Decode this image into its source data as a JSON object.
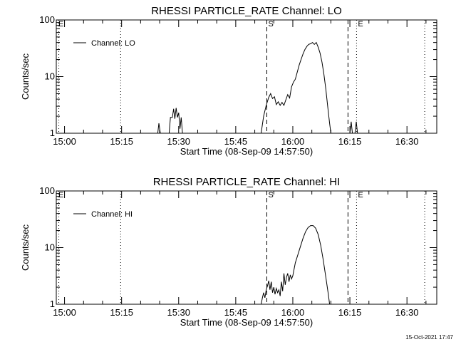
{
  "chart_data": [
    {
      "type": "line",
      "title": "RHESSI PARTICLE_RATE Channel: LO",
      "ylabel": "Counts/sec",
      "xlabel": "Start Time (08-Sep-09 14:57:50)",
      "x_ticks": [
        "15:00",
        "15:15",
        "15:30",
        "15:45",
        "16:00",
        "16:15",
        "16:30"
      ],
      "y_ticks": [
        "1",
        "10",
        "100"
      ],
      "y_scale": "log",
      "ylim": [
        1,
        100
      ],
      "xlim": [
        "14:57:50",
        "16:37:50"
      ],
      "legend": "top-left",
      "series": [
        {
          "name": "Channel: LO",
          "points": [
            [
              "15:24:30",
              1
            ],
            [
              "15:24:48",
              1.5
            ],
            [
              "15:25:10",
              1
            ],
            [
              "15:27:30",
              1
            ],
            [
              "15:27:50",
              1.9
            ],
            [
              "15:28:20",
              1.9
            ],
            [
              "15:28:40",
              2.7
            ],
            [
              "15:29:00",
              1.8
            ],
            [
              "15:29:20",
              2.8
            ],
            [
              "15:29:40",
              1.9
            ],
            [
              "15:30:00",
              2.3
            ],
            [
              "15:30:20",
              1.2
            ],
            [
              "15:30:40",
              1.9
            ],
            [
              "15:31:00",
              1
            ],
            [
              "15:51:40",
              1
            ],
            [
              "15:52:20",
              2
            ],
            [
              "15:53:00",
              3.1
            ],
            [
              "15:53:40",
              4.3
            ],
            [
              "15:54:10",
              5
            ],
            [
              "15:54:40",
              4.1
            ],
            [
              "15:55:10",
              4.4
            ],
            [
              "15:55:40",
              3.2
            ],
            [
              "15:56:10",
              3.6
            ],
            [
              "15:56:40",
              3.1
            ],
            [
              "15:57:10",
              3.5
            ],
            [
              "15:57:40",
              3.1
            ],
            [
              "15:58:10",
              3.9
            ],
            [
              "15:58:40",
              4.8
            ],
            [
              "15:59:10",
              4.2
            ],
            [
              "15:59:40",
              6.6
            ],
            [
              "16:00:10",
              8
            ],
            [
              "16:00:40",
              9
            ],
            [
              "16:01:10",
              12
            ],
            [
              "16:01:40",
              16
            ],
            [
              "16:02:10",
              20
            ],
            [
              "16:02:40",
              25
            ],
            [
              "16:03:10",
              30
            ],
            [
              "16:03:40",
              34
            ],
            [
              "16:04:10",
              37
            ],
            [
              "16:04:40",
              38
            ],
            [
              "16:05:10",
              40
            ],
            [
              "16:05:40",
              37
            ],
            [
              "16:06:10",
              40
            ],
            [
              "16:06:40",
              33
            ],
            [
              "16:07:10",
              26
            ],
            [
              "16:07:40",
              18
            ],
            [
              "16:08:10",
              11
            ],
            [
              "16:08:40",
              6
            ],
            [
              "16:09:10",
              3
            ],
            [
              "16:09:40",
              1.5
            ],
            [
              "16:10:00",
              1
            ],
            [
              "16:15:00",
              1
            ],
            [
              "16:15:20",
              1.6
            ],
            [
              "16:15:40",
              1
            ],
            [
              "16:16:20",
              1
            ],
            [
              "16:16:40",
              1.6
            ],
            [
              "16:17:00",
              1
            ]
          ]
        }
      ],
      "vertical_lines": [
        {
          "label": "",
          "time": "14:58:30",
          "style": "dotted"
        },
        {
          "label": "",
          "time": "15:14:45",
          "style": "dotted"
        },
        {
          "label": "S",
          "time": "15:53:10",
          "style": "dashed"
        },
        {
          "label": "",
          "time": "16:14:30",
          "style": "dashed"
        },
        {
          "label": "E",
          "time": "16:16:45",
          "style": "dotted"
        },
        {
          "label": "",
          "time": "16:34:40",
          "style": "dotted"
        }
      ],
      "markers": [
        "E",
        "S",
        "E"
      ]
    },
    {
      "type": "line",
      "title": "RHESSI PARTICLE_RATE Channel: HI",
      "ylabel": "Counts/sec",
      "xlabel": "Start Time (08-Sep-09 14:57:50)",
      "x_ticks": [
        "15:00",
        "15:15",
        "15:30",
        "15:45",
        "16:00",
        "16:15",
        "16:30"
      ],
      "y_ticks": [
        "1",
        "10",
        "100"
      ],
      "y_scale": "log",
      "ylim": [
        1,
        100
      ],
      "xlim": [
        "14:57:50",
        "16:37:50"
      ],
      "legend": "top-left",
      "series": [
        {
          "name": "Channel: HI",
          "points": [
            [
              "15:51:40",
              1
            ],
            [
              "15:52:00",
              1.3
            ],
            [
              "15:52:20",
              1.6
            ],
            [
              "15:52:40",
              1.3
            ],
            [
              "15:53:00",
              1.8
            ],
            [
              "15:53:20",
              2.1
            ],
            [
              "15:53:40",
              2.6
            ],
            [
              "15:54:00",
              1.8
            ],
            [
              "15:54:20",
              2.5
            ],
            [
              "15:54:40",
              1.6
            ],
            [
              "15:55:00",
              2
            ],
            [
              "15:55:20",
              1.5
            ],
            [
              "15:55:40",
              1.9
            ],
            [
              "15:56:00",
              1.6
            ],
            [
              "15:56:20",
              1.8
            ],
            [
              "15:56:40",
              1.4
            ],
            [
              "15:57:00",
              2.5
            ],
            [
              "15:57:20",
              1.7
            ],
            [
              "15:57:40",
              3.5
            ],
            [
              "15:58:00",
              2.2
            ],
            [
              "15:58:20",
              3
            ],
            [
              "15:58:40",
              3.5
            ],
            [
              "15:59:00",
              2.5
            ],
            [
              "15:59:20",
              3.3
            ],
            [
              "15:59:40",
              2.8
            ],
            [
              "16:00:00",
              3.2
            ],
            [
              "16:00:20",
              4.2
            ],
            [
              "16:00:40",
              5.4
            ],
            [
              "16:01:20",
              7.5
            ],
            [
              "16:02:00",
              10.5
            ],
            [
              "16:02:40",
              14.5
            ],
            [
              "16:03:20",
              19
            ],
            [
              "16:04:00",
              22.5
            ],
            [
              "16:04:40",
              24.5
            ],
            [
              "16:05:20",
              24.5
            ],
            [
              "16:06:00",
              22
            ],
            [
              "16:06:40",
              17
            ],
            [
              "16:07:20",
              11
            ],
            [
              "16:08:00",
              6
            ],
            [
              "16:08:40",
              3
            ],
            [
              "16:09:20",
              1.5
            ],
            [
              "16:09:40",
              1
            ]
          ]
        }
      ],
      "vertical_lines": [
        {
          "label": "",
          "time": "14:58:30",
          "style": "dotted"
        },
        {
          "label": "",
          "time": "15:14:45",
          "style": "dotted"
        },
        {
          "label": "S",
          "time": "15:53:10",
          "style": "dashed"
        },
        {
          "label": "",
          "time": "16:14:30",
          "style": "dashed"
        },
        {
          "label": "E",
          "time": "16:16:45",
          "style": "dotted"
        },
        {
          "label": "",
          "time": "16:34:40",
          "style": "dotted"
        }
      ],
      "markers": [
        "E",
        "S",
        "E"
      ]
    }
  ],
  "footer": {
    "date": "15-Oct-2021 17:47"
  }
}
